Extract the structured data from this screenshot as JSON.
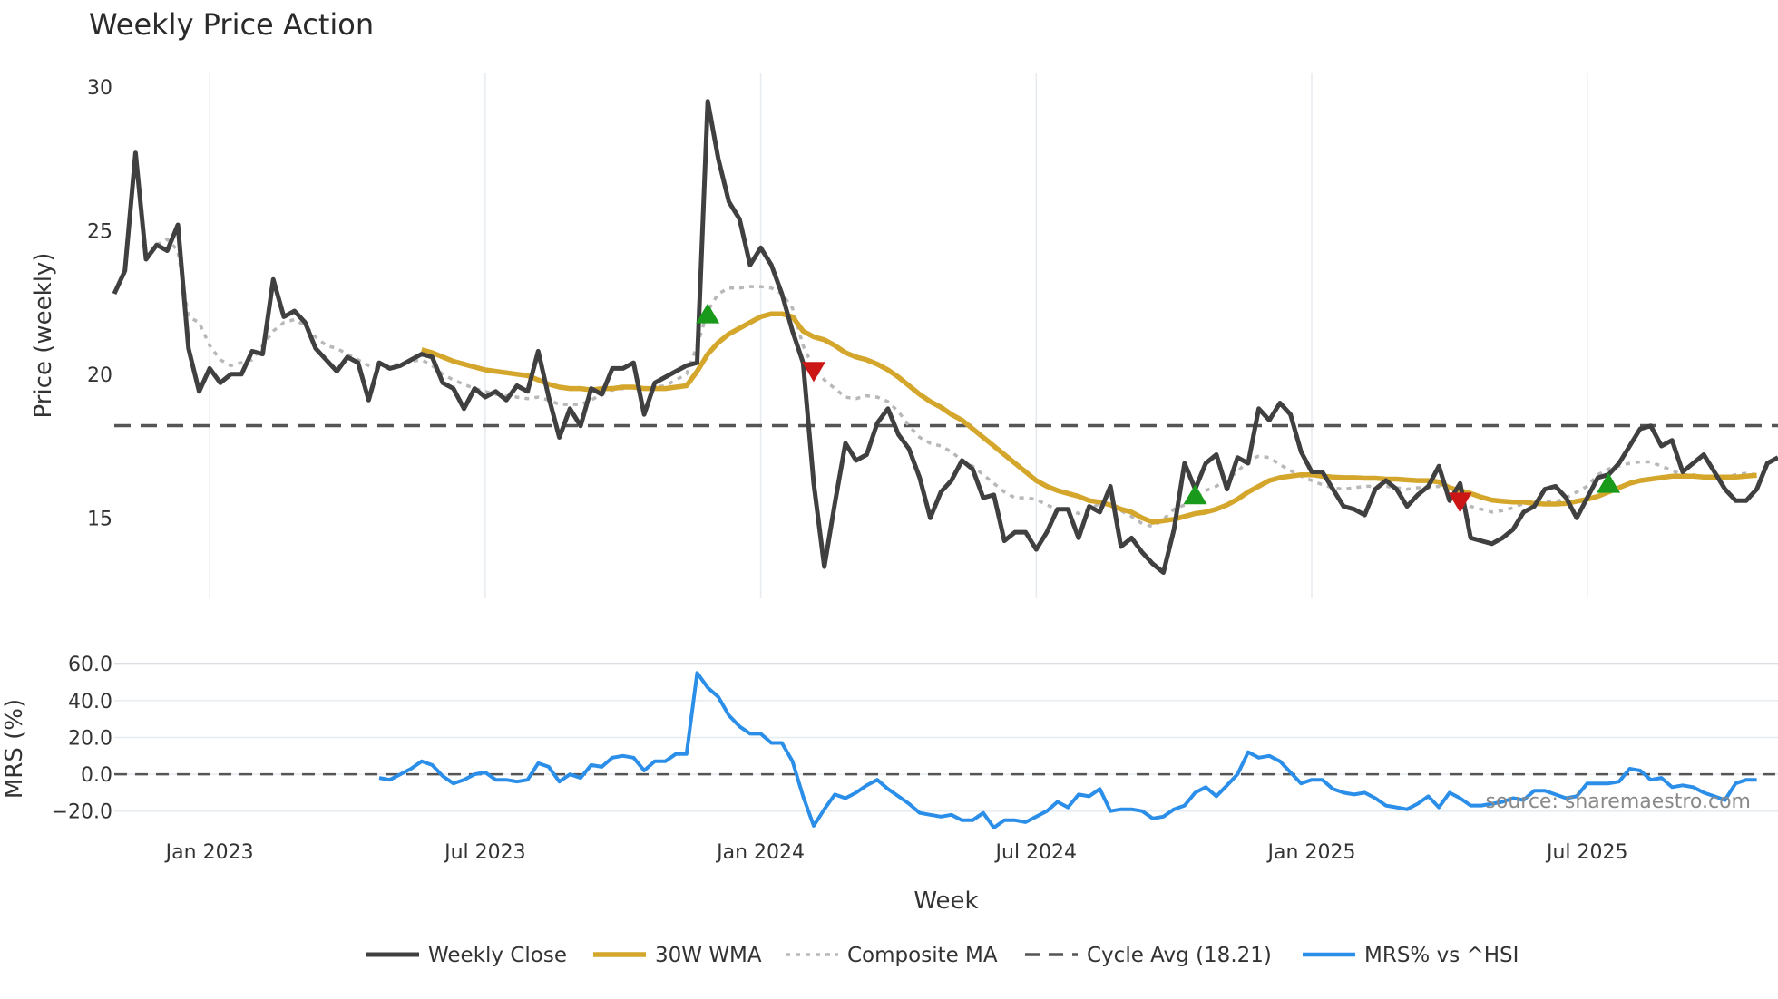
{
  "chart_data": {
    "type": "line",
    "title": "Weekly Price Action",
    "x_label": "Week",
    "x_ticks": [
      "Jan 2023",
      "Jul 2023",
      "Jan 2024",
      "Jul 2024",
      "Jan 2025",
      "Jul 2025"
    ],
    "x_tick_weeks": [
      9,
      35,
      61,
      87,
      113,
      139
    ],
    "source_note": "source: sharemaestro.com",
    "colors": {
      "close": "#404040",
      "wma": "#d4a72c",
      "composite": "#b8b8b8",
      "cycle": "#555555",
      "mrs": "#2b8ee8",
      "buy": "#1a9a1a",
      "sell": "#cc1616"
    },
    "legend": [
      "Weekly Close",
      "30W WMA",
      "Composite MA",
      "Cycle Avg (18.21)",
      "MRS% vs ^HSI"
    ],
    "price_panel": {
      "y_label": "Price (weekly)",
      "ylim": [
        12.2,
        30.5
      ],
      "y_ticks": [
        15,
        20,
        25,
        30
      ],
      "cycle_avg": 18.21,
      "weekly_close": [
        22.8,
        23.6,
        27.7,
        24.0,
        24.5,
        24.3,
        25.2,
        20.9,
        19.4,
        20.2,
        19.7,
        20.0,
        20.0,
        20.8,
        20.7,
        23.3,
        22.0,
        22.2,
        21.8,
        20.9,
        20.5,
        20.1,
        20.6,
        20.4,
        19.1,
        20.4,
        20.2,
        20.3,
        20.5,
        20.7,
        20.6,
        19.7,
        19.5,
        18.8,
        19.5,
        19.2,
        19.4,
        19.1,
        19.6,
        19.4,
        20.8,
        19.2,
        17.8,
        18.8,
        18.2,
        19.5,
        19.3,
        20.2,
        20.2,
        20.4,
        18.6,
        19.7,
        19.9,
        20.1,
        20.3,
        20.4,
        29.5,
        27.5,
        26.0,
        25.4,
        23.8,
        24.4,
        23.8,
        22.8,
        21.5,
        20.4,
        16.2,
        13.3,
        15.5,
        17.6,
        17.0,
        17.2,
        18.3,
        18.8,
        17.9,
        17.4,
        16.4,
        15.0,
        15.9,
        16.3,
        17.0,
        16.7,
        15.7,
        15.8,
        14.2,
        14.5,
        14.5,
        13.9,
        14.5,
        15.3,
        15.3,
        14.3,
        15.4,
        15.2,
        16.1,
        14.0,
        14.3,
        13.8,
        13.4,
        13.1,
        14.6,
        16.9,
        16.0,
        16.9,
        17.2,
        16.0,
        17.1,
        16.9,
        18.8,
        18.4,
        19.0,
        18.6,
        17.3,
        16.6,
        16.6,
        16.0,
        15.4,
        15.3,
        15.1,
        16.0,
        16.3,
        16.0,
        15.4,
        15.8,
        16.1,
        16.8,
        15.6,
        16.2,
        14.3,
        14.2,
        14.1,
        14.3,
        14.6,
        15.2,
        15.4,
        16.0,
        16.1,
        15.7,
        15.0,
        15.7,
        16.4,
        16.5,
        16.9,
        17.5,
        18.1,
        18.2,
        17.5,
        17.7,
        16.6,
        16.9,
        17.2,
        16.6,
        16.0,
        15.6,
        15.6,
        16.0,
        16.9,
        17.1
      ],
      "wma_30w": [
        null,
        null,
        null,
        null,
        null,
        null,
        null,
        null,
        null,
        null,
        null,
        null,
        null,
        null,
        null,
        null,
        null,
        null,
        null,
        null,
        null,
        null,
        null,
        null,
        null,
        null,
        null,
        null,
        null,
        20.85,
        20.75,
        20.6,
        20.45,
        20.35,
        20.25,
        20.15,
        20.1,
        20.05,
        20.0,
        19.95,
        19.8,
        19.65,
        19.55,
        19.5,
        19.5,
        19.45,
        19.5,
        19.5,
        19.55,
        19.55,
        19.5,
        19.5,
        19.5,
        19.55,
        19.6,
        20.1,
        20.7,
        21.1,
        21.4,
        21.6,
        21.8,
        22.0,
        22.1,
        22.1,
        22.0,
        21.5,
        21.3,
        21.2,
        21.0,
        20.75,
        20.6,
        20.5,
        20.35,
        20.15,
        19.9,
        19.6,
        19.3,
        19.05,
        18.85,
        18.6,
        18.4,
        18.1,
        17.8,
        17.5,
        17.2,
        16.9,
        16.6,
        16.3,
        16.1,
        15.95,
        15.85,
        15.75,
        15.6,
        15.55,
        15.45,
        15.3,
        15.2,
        15.0,
        14.85,
        14.9,
        14.95,
        15.05,
        15.15,
        15.2,
        15.3,
        15.45,
        15.65,
        15.9,
        16.1,
        16.3,
        16.4,
        16.45,
        16.5,
        16.5,
        16.45,
        16.42,
        16.4,
        16.4,
        16.38,
        16.38,
        16.35,
        16.35,
        16.32,
        16.3,
        16.3,
        16.25,
        16.05,
        15.95,
        15.85,
        15.72,
        15.62,
        15.58,
        15.55,
        15.55,
        15.5,
        15.48,
        15.48,
        15.5,
        15.58,
        15.65,
        15.75,
        15.9,
        16.05,
        16.2,
        16.3,
        16.35,
        16.4,
        16.45,
        16.45,
        16.45,
        16.42,
        16.42,
        16.42,
        16.42,
        16.45,
        16.48
      ],
      "composite_ma": [
        null,
        null,
        null,
        null,
        24.5,
        24.7,
        24.3,
        22.0,
        21.8,
        21.0,
        20.5,
        20.3,
        20.4,
        20.5,
        21.0,
        21.5,
        21.8,
        21.9,
        21.7,
        21.3,
        21.0,
        20.9,
        20.7,
        20.5,
        20.3,
        20.2,
        20.3,
        20.35,
        20.45,
        20.5,
        20.3,
        20.0,
        19.8,
        19.65,
        19.5,
        19.4,
        19.3,
        19.25,
        19.2,
        19.15,
        19.2,
        19.1,
        18.95,
        18.95,
        18.95,
        19.1,
        19.3,
        19.45,
        19.5,
        19.55,
        19.5,
        19.55,
        19.6,
        19.8,
        20.0,
        21.0,
        22.2,
        22.8,
        23.0,
        23.0,
        23.05,
        23.05,
        23.0,
        22.8,
        22.3,
        21.0,
        20.2,
        19.8,
        19.5,
        19.2,
        19.15,
        19.25,
        19.2,
        19.05,
        18.7,
        18.2,
        17.8,
        17.6,
        17.5,
        17.3,
        17.0,
        16.8,
        16.5,
        16.2,
        15.9,
        15.7,
        15.7,
        15.65,
        15.45,
        15.3,
        15.3,
        15.15,
        15.3,
        15.5,
        15.5,
        15.25,
        15.05,
        14.8,
        14.7,
        14.95,
        15.3,
        15.45,
        15.7,
        15.95,
        16.1,
        16.35,
        16.6,
        17.0,
        17.15,
        17.1,
        16.85,
        16.65,
        16.45,
        16.3,
        16.15,
        16.05,
        16.0,
        16.05,
        16.1,
        16.1,
        16.1,
        16.05,
        16.0,
        16.05,
        16.05,
        16.1,
        15.95,
        15.6,
        15.4,
        15.3,
        15.2,
        15.25,
        15.35,
        15.5,
        15.6,
        15.55,
        15.55,
        15.7,
        15.9,
        16.1,
        16.5,
        16.7,
        16.8,
        16.9,
        16.95,
        16.95,
        16.8,
        16.65,
        16.5,
        16.5,
        16.4,
        16.4,
        16.4,
        16.5,
        16.55,
        16.5
      ],
      "buy_signals": [
        {
          "week": 56,
          "value": 22.1
        },
        {
          "week": 102,
          "value": 15.8
        },
        {
          "week": 141,
          "value": 16.2
        }
      ],
      "sell_signals": [
        {
          "week": 66,
          "value": 20.1
        },
        {
          "week": 127,
          "value": 15.55
        }
      ]
    },
    "mrs_panel": {
      "y_label": "MRS (%)",
      "ylim": [
        -30,
        66
      ],
      "y_ticks": [
        "60.0",
        "40.0",
        "20.0",
        "0.0",
        "−20.0"
      ],
      "y_tick_values": [
        60,
        40,
        20,
        0,
        -20
      ],
      "zero_line": 0,
      "mrs_vs_hsi": [
        null,
        null,
        null,
        null,
        null,
        null,
        null,
        null,
        null,
        null,
        null,
        null,
        null,
        null,
        null,
        null,
        null,
        null,
        null,
        null,
        null,
        null,
        null,
        null,
        null,
        -2,
        -3,
        0,
        3,
        7,
        5,
        -1,
        -5,
        -3,
        0,
        1,
        -3,
        -3,
        -4,
        -3,
        6,
        4,
        -4,
        0,
        -2,
        5,
        4,
        9,
        10,
        9,
        2,
        7,
        7,
        11,
        11,
        55,
        47,
        42,
        32,
        26,
        22,
        22,
        17,
        17,
        7,
        -12,
        -28,
        -19,
        -11,
        -13,
        -10,
        -6,
        -3,
        -8,
        -12,
        -16,
        -21,
        -22,
        -23,
        -22,
        -25,
        -25,
        -21,
        -29,
        -25,
        -25,
        -26,
        -23,
        -20,
        -15,
        -18,
        -11,
        -12,
        -8,
        -20,
        -19,
        -19,
        -20,
        -24,
        -23,
        -19,
        -17,
        -10,
        -7,
        -12,
        -6,
        0,
        12,
        9,
        10,
        7,
        1,
        -5,
        -3,
        -3,
        -8,
        -10,
        -11,
        -10,
        -13,
        -17,
        -18,
        -19,
        -16,
        -12,
        -18,
        -10,
        -13,
        -17,
        -17,
        -16,
        -15,
        -13,
        -14,
        -9,
        -9,
        -11,
        -13,
        -12,
        -5,
        -5,
        -5,
        -4,
        3,
        2,
        -3,
        -2,
        -7,
        -6,
        -7,
        -10,
        -12,
        -14,
        -5,
        -3,
        -3
      ]
    }
  }
}
